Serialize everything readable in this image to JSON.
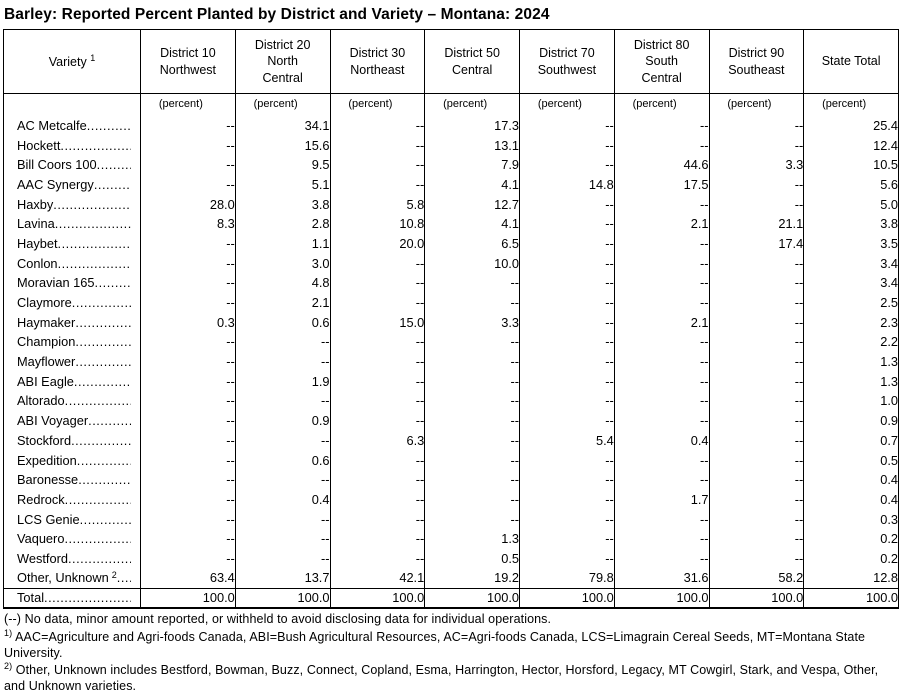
{
  "title": "Barley: Reported Percent Planted by District and Variety – Montana: 2024",
  "table": {
    "variety_header": "Variety",
    "variety_header_sup": "1",
    "unit_label": "(percent)",
    "leader": "..........................................................................",
    "columns": [
      "District 10\nNorthwest",
      "District 20\nNorth\nCentral",
      "District 30\nNortheast",
      "District 50\nCentral",
      "District 70\nSouthwest",
      "District 80\nSouth\nCentral",
      "District 90\nSoutheast",
      "State Total"
    ],
    "rows": [
      {
        "variety": "AC Metcalfe",
        "sup": "",
        "values": [
          "--",
          "34.1",
          "--",
          "17.3",
          "--",
          "--",
          "--",
          "25.4"
        ]
      },
      {
        "variety": "Hockett",
        "sup": "",
        "values": [
          "--",
          "15.6",
          "--",
          "13.1",
          "--",
          "--",
          "--",
          "12.4"
        ]
      },
      {
        "variety": "Bill Coors 100",
        "sup": "",
        "values": [
          "--",
          "9.5",
          "--",
          "7.9",
          "--",
          "44.6",
          "3.3",
          "10.5"
        ]
      },
      {
        "variety": "AAC Synergy",
        "sup": "",
        "values": [
          "--",
          "5.1",
          "--",
          "4.1",
          "14.8",
          "17.5",
          "--",
          "5.6"
        ]
      },
      {
        "variety": "Haxby",
        "sup": "",
        "values": [
          "28.0",
          "3.8",
          "5.8",
          "12.7",
          "--",
          "--",
          "--",
          "5.0"
        ]
      },
      {
        "variety": "Lavina",
        "sup": "",
        "values": [
          "8.3",
          "2.8",
          "10.8",
          "4.1",
          "--",
          "2.1",
          "21.1",
          "3.8"
        ]
      },
      {
        "variety": "Haybet",
        "sup": "",
        "values": [
          "--",
          "1.1",
          "20.0",
          "6.5",
          "--",
          "--",
          "17.4",
          "3.5"
        ]
      },
      {
        "variety": "Conlon",
        "sup": "",
        "values": [
          "--",
          "3.0",
          "--",
          "10.0",
          "--",
          "--",
          "--",
          "3.4"
        ]
      },
      {
        "variety": "Moravian 165",
        "sup": "",
        "values": [
          "--",
          "4.8",
          "--",
          "--",
          "--",
          "--",
          "--",
          "3.4"
        ]
      },
      {
        "variety": "Claymore",
        "sup": "",
        "values": [
          "--",
          "2.1",
          "--",
          "--",
          "--",
          "--",
          "--",
          "2.5"
        ]
      },
      {
        "variety": "Haymaker",
        "sup": "",
        "values": [
          "0.3",
          "0.6",
          "15.0",
          "3.3",
          "--",
          "2.1",
          "--",
          "2.3"
        ]
      },
      {
        "variety": "Champion",
        "sup": "",
        "values": [
          "--",
          "--",
          "--",
          "--",
          "--",
          "--",
          "--",
          "2.2"
        ]
      },
      {
        "variety": "Mayflower",
        "sup": "",
        "values": [
          "--",
          "--",
          "--",
          "--",
          "--",
          "--",
          "--",
          "1.3"
        ]
      },
      {
        "variety": "ABI Eagle",
        "sup": "",
        "values": [
          "--",
          "1.9",
          "--",
          "--",
          "--",
          "--",
          "--",
          "1.3"
        ]
      },
      {
        "variety": "Altorado",
        "sup": "",
        "values": [
          "--",
          "--",
          "--",
          "--",
          "--",
          "--",
          "--",
          "1.0"
        ]
      },
      {
        "variety": "ABI Voyager",
        "sup": "",
        "values": [
          "--",
          "0.9",
          "--",
          "--",
          "--",
          "--",
          "--",
          "0.9"
        ]
      },
      {
        "variety": "Stockford",
        "sup": "",
        "values": [
          "--",
          "--",
          "6.3",
          "--",
          "5.4",
          "0.4",
          "--",
          "0.7"
        ]
      },
      {
        "variety": "Expedition",
        "sup": "",
        "values": [
          "--",
          "0.6",
          "--",
          "--",
          "--",
          "--",
          "--",
          "0.5"
        ]
      },
      {
        "variety": "Baronesse",
        "sup": "",
        "values": [
          "--",
          "--",
          "--",
          "--",
          "--",
          "--",
          "--",
          "0.4"
        ]
      },
      {
        "variety": "Redrock",
        "sup": "",
        "values": [
          "--",
          "0.4",
          "--",
          "--",
          "--",
          "1.7",
          "--",
          "0.4"
        ]
      },
      {
        "variety": "LCS Genie",
        "sup": "",
        "values": [
          "--",
          "--",
          "--",
          "--",
          "--",
          "--",
          "--",
          "0.3"
        ]
      },
      {
        "variety": "Vaquero",
        "sup": "",
        "values": [
          "--",
          "--",
          "--",
          "1.3",
          "--",
          "--",
          "--",
          "0.2"
        ]
      },
      {
        "variety": "Westford",
        "sup": "",
        "values": [
          "--",
          "--",
          "--",
          "0.5",
          "--",
          "--",
          "--",
          "0.2"
        ]
      },
      {
        "variety": "Other, Unknown",
        "sup": "2",
        "values": [
          "63.4",
          "13.7",
          "42.1",
          "19.2",
          "79.8",
          "31.6",
          "58.2",
          "12.8"
        ]
      }
    ],
    "total_row": {
      "variety": "Total",
      "values": [
        "100.0",
        "100.0",
        "100.0",
        "100.0",
        "100.0",
        "100.0",
        "100.0",
        "100.0"
      ]
    }
  },
  "footnotes": [
    {
      "marker": "(--)",
      "sup": false,
      "text": "No data, minor amount reported, or withheld to avoid disclosing data for individual operations."
    },
    {
      "marker": "1)",
      "sup": true,
      "text": "AAC=Agriculture and Agri-foods Canada, ABI=Bush Agricultural Resources, AC=Agri-foods Canada, LCS=Limagrain Cereal Seeds, MT=Montana State University."
    },
    {
      "marker": "2)",
      "sup": true,
      "text": "Other, Unknown includes Bestford, Bowman, Buzz, Connect, Copland, Esma, Harrington, Hector, Horsford, Legacy, MT Cowgirl, Stark, and Vespa, Other, and Unknown varieties."
    }
  ]
}
